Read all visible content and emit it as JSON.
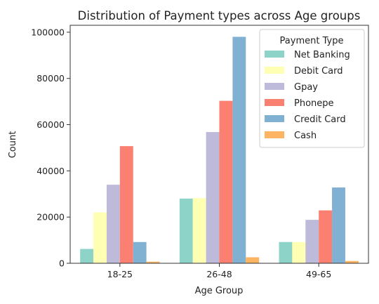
{
  "chart_data": {
    "type": "bar",
    "title": "Distribution of Payment types across Age groups",
    "xlabel": "Age Group",
    "ylabel": "Count",
    "categories": [
      "18-25",
      "26-48",
      "49-65"
    ],
    "ylim": [
      0,
      103000
    ],
    "yticks": [
      0,
      20000,
      40000,
      60000,
      80000,
      100000
    ],
    "ytick_labels": [
      "0",
      "20000",
      "40000",
      "60000",
      "80000",
      "100000"
    ],
    "grid": false,
    "legend": {
      "title": "Payment Type",
      "placement": "top-right"
    },
    "series": [
      {
        "name": "Net Banking",
        "color": "#8dd3c7",
        "values": [
          6200,
          28000,
          9200
        ]
      },
      {
        "name": "Debit Card",
        "color": "#ffffb3",
        "values": [
          22000,
          28200,
          9200
        ]
      },
      {
        "name": "Gpay",
        "color": "#bebada",
        "values": [
          34000,
          56800,
          18800
        ]
      },
      {
        "name": "Phonepe",
        "color": "#fb8072",
        "values": [
          50700,
          70300,
          22900
        ]
      },
      {
        "name": "Credit Card",
        "color": "#80b1d3",
        "values": [
          9200,
          98000,
          32800
        ]
      },
      {
        "name": "Cash",
        "color": "#fdb462",
        "values": [
          700,
          2600,
          1000
        ]
      }
    ]
  }
}
